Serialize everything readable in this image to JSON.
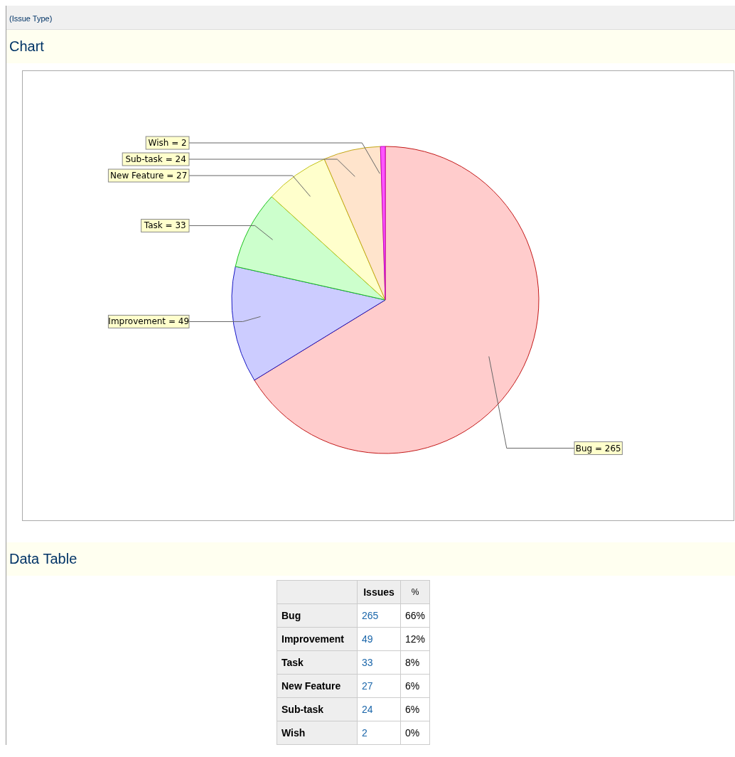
{
  "chart_data": [
    {
      "type": "pie",
      "subtitle": "(Issue Type)",
      "categories": [
        "Bug",
        "Improvement",
        "Task",
        "New Feature",
        "Sub-task",
        "Wish"
      ],
      "values": [
        265,
        49,
        33,
        27,
        24,
        2
      ],
      "colors": [
        "#ffcccc",
        "#ccccff",
        "#ccffcc",
        "#ffffcc",
        "#ffe4cc",
        "#ff55ff"
      ],
      "value_labels": [
        "= 265",
        "= 49",
        "= 33",
        "= 27",
        "= 24",
        "= 2"
      ],
      "legend": false,
      "annotations": [
        "Chart"
      ]
    },
    {
      "type": "other",
      "categories": [
        "Bug",
        "Improvement",
        "Task",
        "New Feature",
        "Sub-task",
        "Wish"
      ],
      "series": [
        {
          "name": "Issues",
          "values": [
            265,
            49,
            33,
            27,
            24,
            2
          ]
        },
        {
          "name": "%",
          "values": [
            66,
            12,
            8,
            6,
            6,
            0
          ],
          "value_labels": [
            "66%",
            "12%",
            "8%",
            "6%",
            "6%",
            "0%"
          ]
        }
      ],
      "data_labels": true,
      "annotations": [
        "Data Table"
      ]
    }
  ]
}
